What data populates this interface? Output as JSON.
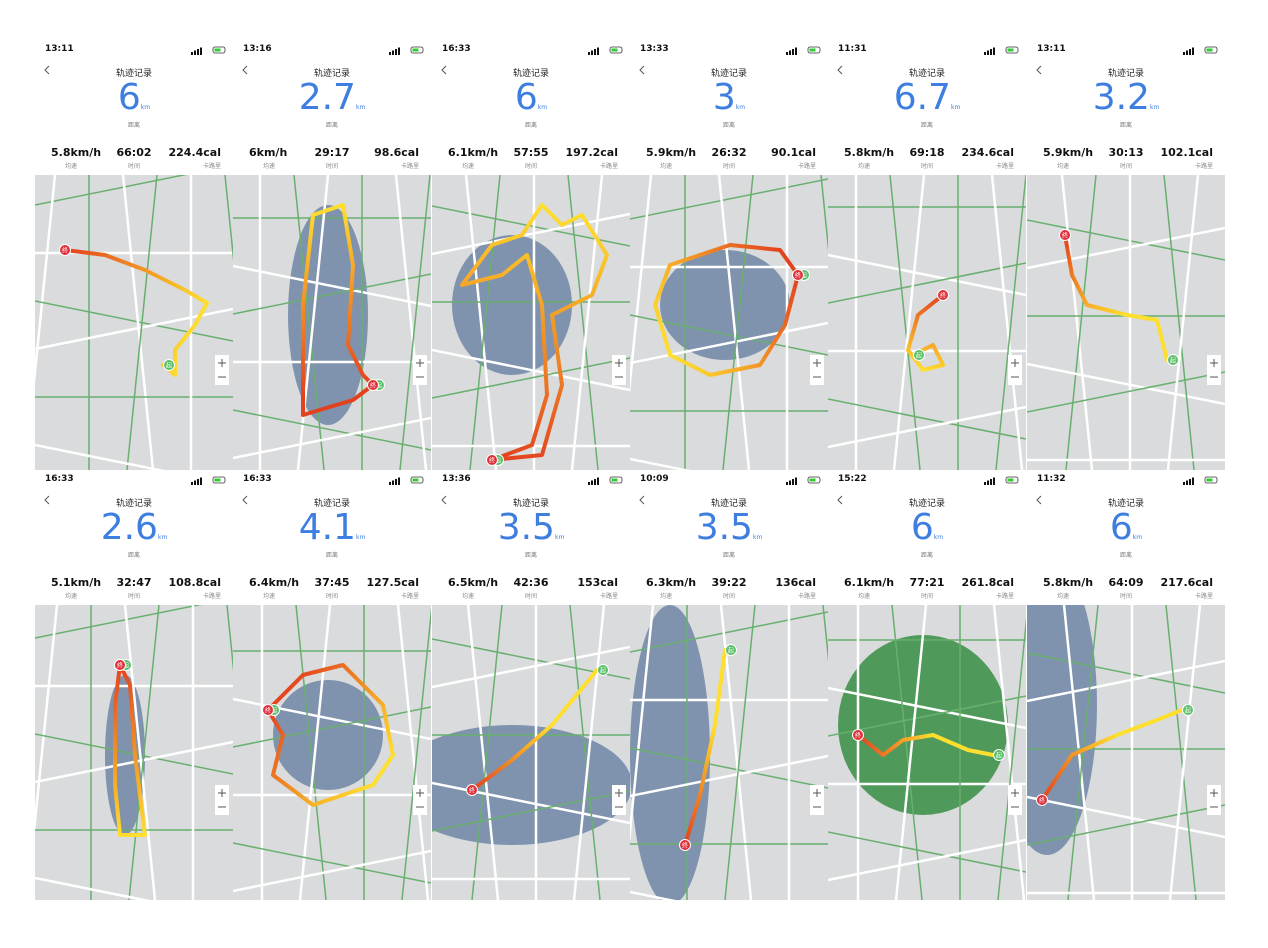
{
  "labels": {
    "title": "轨迹记录",
    "unit": "km",
    "distance": "距离",
    "speed": "均速",
    "duration": "时间",
    "calories": "卡路里",
    "start": "起",
    "end": "终"
  },
  "panels": [
    {
      "time": "13:11",
      "distance": "6",
      "speed": "5.8km/h",
      "duration": "66:02",
      "calories": "224.4cal"
    },
    {
      "time": "13:16",
      "distance": "2.7",
      "speed": "6km/h",
      "duration": "29:17",
      "calories": "98.6cal"
    },
    {
      "time": "16:33",
      "distance": "6",
      "speed": "6.1km/h",
      "duration": "57:55",
      "calories": "197.2cal"
    },
    {
      "time": "13:33",
      "distance": "3",
      "speed": "5.9km/h",
      "duration": "26:32",
      "calories": "90.1cal"
    },
    {
      "time": "11:31",
      "distance": "6.7",
      "speed": "5.8km/h",
      "duration": "69:18",
      "calories": "234.6cal"
    },
    {
      "time": "13:11",
      "distance": "3.2",
      "speed": "5.9km/h",
      "duration": "30:13",
      "calories": "102.1cal"
    },
    {
      "time": "16:33",
      "distance": "2.6",
      "speed": "5.1km/h",
      "duration": "32:47",
      "calories": "108.8cal"
    },
    {
      "time": "16:33",
      "distance": "4.1",
      "speed": "6.4km/h",
      "duration": "37:45",
      "calories": "127.5cal"
    },
    {
      "time": "13:36",
      "distance": "3.5",
      "speed": "6.5km/h",
      "duration": "42:36",
      "calories": "153cal"
    },
    {
      "time": "10:09",
      "distance": "3.5",
      "speed": "6.3km/h",
      "duration": "39:22",
      "calories": "136cal"
    },
    {
      "time": "15:22",
      "distance": "6",
      "speed": "6.1km/h",
      "duration": "77:21",
      "calories": "261.8cal"
    },
    {
      "time": "11:32",
      "distance": "6",
      "speed": "5.8km/h",
      "duration": "64:09",
      "calories": "217.6cal"
    }
  ]
}
